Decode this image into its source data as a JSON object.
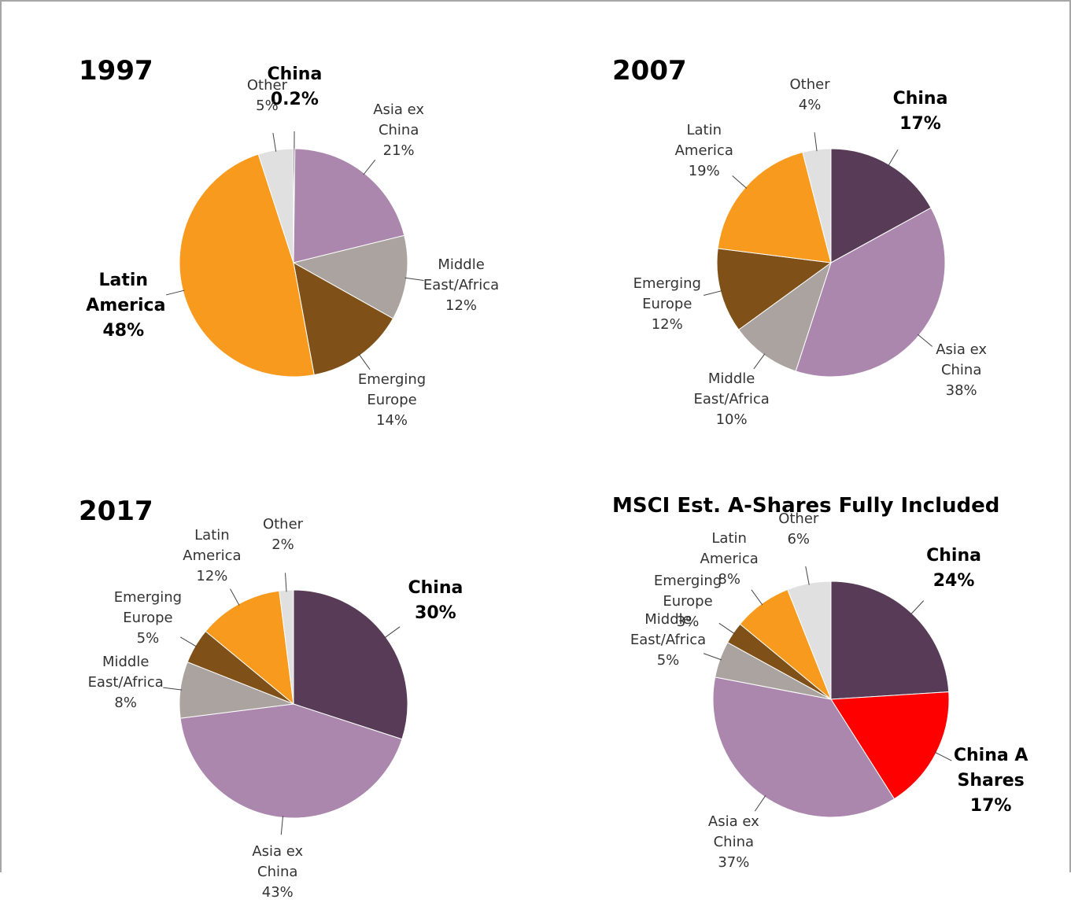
{
  "chart_data": [
    {
      "type": "pie",
      "title": "1997",
      "categories": [
        "China",
        "Asia ex China",
        "Middle East/Africa",
        "Emerging Europe",
        "Latin America",
        "Other"
      ],
      "values": [
        0.2,
        21,
        12,
        14,
        48,
        5
      ],
      "value_labels": [
        "0.2%",
        "21%",
        "12%",
        "14%",
        "48%",
        "5%"
      ],
      "colors": [
        "#583b57",
        "#ab87ad",
        "#aba39f",
        "#7f5119",
        "#f79a1e",
        "#e0e0e0"
      ],
      "bold": [
        true,
        false,
        false,
        false,
        true,
        false
      ]
    },
    {
      "type": "pie",
      "title": "2007",
      "categories": [
        "China",
        "Asia ex China",
        "Middle East/Africa",
        "Emerging Europe",
        "Latin America",
        "Other"
      ],
      "values": [
        17,
        38,
        10,
        12,
        19,
        4
      ],
      "value_labels": [
        "17%",
        "38%",
        "10%",
        "12%",
        "19%",
        "4%"
      ],
      "colors": [
        "#583b57",
        "#ab87ad",
        "#aba39f",
        "#7f5119",
        "#f79a1e",
        "#e0e0e0"
      ],
      "bold": [
        true,
        false,
        false,
        false,
        false,
        false
      ]
    },
    {
      "type": "pie",
      "title": "2017",
      "categories": [
        "China",
        "Asia ex China",
        "Middle East/Africa",
        "Emerging Europe",
        "Latin America",
        "Other"
      ],
      "values": [
        30,
        43,
        8,
        5,
        12,
        2
      ],
      "value_labels": [
        "30%",
        "43%",
        "8%",
        "5%",
        "12%",
        "2%"
      ],
      "colors": [
        "#583b57",
        "#ab87ad",
        "#aba39f",
        "#7f5119",
        "#f79a1e",
        "#e0e0e0"
      ],
      "bold": [
        true,
        false,
        false,
        false,
        false,
        false
      ]
    },
    {
      "type": "pie",
      "title": "MSCI Est. A-Shares Fully Included",
      "categories": [
        "China",
        "China A Shares",
        "Asia ex China",
        "Middle East/Africa",
        "Emerging Europe",
        "Latin America",
        "Other"
      ],
      "values": [
        24,
        17,
        37,
        5,
        3,
        8,
        6
      ],
      "value_labels": [
        "24%",
        "17%",
        "37%",
        "5%",
        "3%",
        "8%",
        "6%"
      ],
      "colors": [
        "#583b57",
        "#ff0000",
        "#ab87ad",
        "#aba39f",
        "#7f5119",
        "#f79a1e",
        "#e0e0e0"
      ],
      "bold": [
        true,
        true,
        false,
        false,
        false,
        false,
        false
      ]
    }
  ]
}
